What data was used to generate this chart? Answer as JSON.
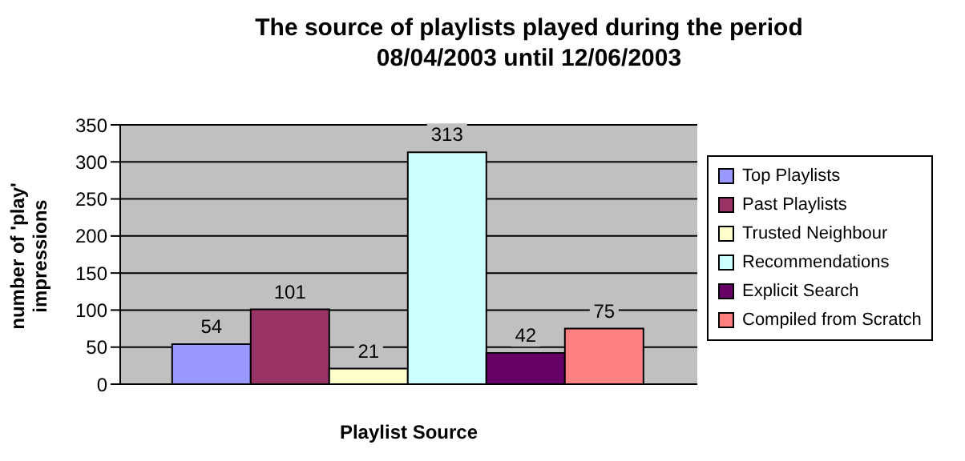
{
  "chart_data": {
    "type": "bar",
    "title": "The source of playlists played during the period 08/04/2003 until 12/06/2003",
    "xlabel": "Playlist Source",
    "ylabel": "number of 'play' impressions",
    "categories": [
      null
    ],
    "series": [
      {
        "name": "Top Playlists",
        "color": "#9999ff",
        "values": [
          54
        ]
      },
      {
        "name": "Past Playlists",
        "color": "#993366",
        "values": [
          101
        ]
      },
      {
        "name": "Trusted Neighbour",
        "color": "#ffffcc",
        "values": [
          21
        ]
      },
      {
        "name": "Recommendations",
        "color": "#ccffff",
        "values": [
          313
        ]
      },
      {
        "name": "Explicit Search",
        "color": "#660066",
        "values": [
          42
        ]
      },
      {
        "name": "Compiled from Scratch",
        "color": "#ff8080",
        "values": [
          75
        ]
      }
    ],
    "ylim": [
      0,
      350
    ],
    "yticks": [
      0,
      50,
      100,
      150,
      200,
      250,
      300,
      350
    ],
    "grid": "y",
    "legend": "right",
    "data_labels": true
  }
}
